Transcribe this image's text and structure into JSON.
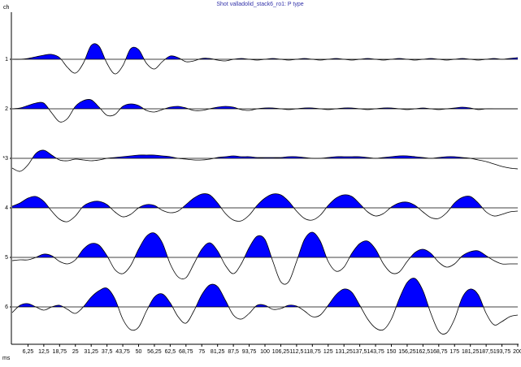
{
  "chart_data": {
    "type": "wiggle",
    "title": "Shot valladolid_stack6_ro1: P type",
    "y_axis_label": "ch",
    "x_axis_label": "ms",
    "xlim": [
      0,
      200
    ],
    "ylim": [
      -30.5,
      30.5
    ],
    "fill_color": "#0000ff",
    "line_color": "#000000",
    "xticks": [
      {
        "value": 6.25,
        "label": "6,25"
      },
      {
        "value": 12.5,
        "label": "12,5"
      },
      {
        "value": 18.75,
        "label": "18,75"
      },
      25,
      {
        "value": 31.25,
        "label": "31,25"
      },
      {
        "value": 37.5,
        "label": "37,5"
      },
      {
        "value": 43.75,
        "label": "43,75"
      },
      50,
      {
        "value": 56.25,
        "label": "56,25"
      },
      {
        "value": 62.5,
        "label": "62,5"
      },
      {
        "value": 68.75,
        "label": "68,75"
      },
      75,
      {
        "value": 81.25,
        "label": "81,25"
      },
      {
        "value": 87.5,
        "label": "87,5"
      },
      {
        "value": 93.75,
        "label": "93,75"
      },
      100,
      {
        "value": 106.25,
        "label": "106,25"
      },
      {
        "value": 112.5,
        "label": "112,5"
      },
      {
        "value": 118.75,
        "label": "118,75"
      },
      125,
      {
        "value": 131.25,
        "label": "131,25"
      },
      {
        "value": 137.5,
        "label": "137,5"
      },
      {
        "value": 143.75,
        "label": "143,75"
      },
      150,
      {
        "value": 156.25,
        "label": "156,25"
      },
      {
        "value": 162.5,
        "label": "162,5"
      },
      {
        "value": 168.75,
        "label": "168,75"
      },
      175,
      {
        "value": 181.25,
        "label": "181,25"
      },
      {
        "value": 187.5,
        "label": "187,5"
      },
      {
        "value": 193.75,
        "label": "193,75"
      },
      200
    ],
    "x": [
      0,
      3.125,
      6.25,
      9.375,
      12.5,
      15.625,
      18.75,
      21.875,
      25,
      28.125,
      31.25,
      34.375,
      37.5,
      40.625,
      43.75,
      46.875,
      50,
      53.125,
      56.25,
      59.375,
      62.5,
      65.625,
      68.75,
      71.875,
      75,
      78.125,
      81.25,
      84.375,
      87.5,
      90.625,
      93.75,
      96.875,
      100,
      103.125,
      106.25,
      109.375,
      112.5,
      115.625,
      118.75,
      121.875,
      125,
      128.125,
      131.25,
      134.375,
      137.5,
      140.625,
      143.75,
      146.875,
      150,
      153.125,
      156.25,
      159.375,
      162.5,
      165.625,
      168.75,
      171.875,
      175,
      178.125,
      181.25,
      184.375,
      187.5,
      190.625,
      193.75,
      196.875,
      200
    ],
    "series": [
      {
        "name": "1",
        "values": [
          0,
          0,
          1,
          3,
          5,
          6,
          2,
          -10,
          -17,
          -5,
          17,
          16,
          -5,
          -18,
          -8,
          13,
          12,
          -5,
          -12,
          -3,
          4,
          2,
          -3,
          -2,
          1,
          1,
          -1,
          -2,
          0,
          1,
          0,
          -1,
          0,
          1,
          0,
          -1,
          0,
          1,
          0,
          -1,
          0,
          1,
          0,
          -1,
          0,
          1,
          0,
          -1,
          0,
          1,
          0,
          -1,
          0,
          1,
          0,
          -1,
          0,
          1,
          0,
          -1,
          0,
          1,
          0,
          1,
          2
        ]
      },
      {
        "name": "2",
        "values": [
          0,
          1,
          4,
          7,
          7,
          -5,
          -16,
          -12,
          3,
          10,
          11,
          2,
          -8,
          -7,
          3,
          6,
          4,
          -2,
          -4,
          -1,
          2,
          3,
          1,
          -2,
          -2,
          0,
          2,
          3,
          2,
          -1,
          -2,
          0,
          1,
          1,
          0,
          -1,
          0,
          1,
          1,
          0,
          -1,
          0,
          1,
          1,
          0,
          -1,
          0,
          1,
          1,
          0,
          -1,
          0,
          1,
          0,
          -1,
          0,
          1,
          2,
          1,
          -1,
          0,
          0,
          0,
          0,
          0
        ]
      },
      {
        "name": "*3",
        "values": [
          -12,
          -16,
          -8,
          6,
          10,
          4,
          -2,
          -3,
          -1,
          -2,
          -3,
          -2,
          0,
          1,
          2,
          3,
          4,
          4,
          4,
          3,
          2,
          0,
          -1,
          -2,
          -2,
          -1,
          1,
          2,
          3,
          2,
          2,
          1,
          1,
          1,
          1,
          2,
          2,
          1,
          0,
          0,
          1,
          2,
          2,
          2,
          2,
          1,
          0,
          1,
          2,
          3,
          3,
          2,
          1,
          0,
          1,
          2,
          2,
          1,
          0,
          -2,
          -4,
          -7,
          -10,
          -12,
          -13
        ]
      },
      {
        "name": "4",
        "values": [
          2,
          6,
          12,
          14,
          8,
          -4,
          -14,
          -17,
          -10,
          2,
          7,
          8,
          4,
          -5,
          -11,
          -8,
          0,
          4,
          3,
          -3,
          -6,
          -4,
          4,
          12,
          17,
          16,
          6,
          -7,
          -15,
          -16,
          -9,
          3,
          12,
          17,
          16,
          8,
          -4,
          -13,
          -15,
          -9,
          3,
          12,
          16,
          14,
          5,
          -5,
          -10,
          -7,
          1,
          6,
          7,
          3,
          -5,
          -12,
          -13,
          -6,
          6,
          13,
          14,
          6,
          -5,
          -10,
          -8,
          -5,
          -4
        ]
      },
      {
        "name": "5",
        "values": [
          -4,
          -3,
          -3,
          0,
          4,
          2,
          -5,
          -8,
          -3,
          10,
          17,
          15,
          2,
          -15,
          -20,
          -10,
          10,
          26,
          30,
          18,
          -8,
          -24,
          -25,
          -8,
          10,
          18,
          8,
          -10,
          -20,
          -8,
          12,
          26,
          22,
          -5,
          -30,
          -30,
          -5,
          22,
          31,
          20,
          -5,
          -17,
          -12,
          5,
          17,
          20,
          10,
          -8,
          -19,
          -18,
          -5,
          6,
          10,
          5,
          -6,
          -12,
          -8,
          2,
          7,
          8,
          2,
          -4,
          -8,
          -8,
          -8
        ]
      },
      {
        "name": "6",
        "values": [
          -7,
          2,
          4,
          0,
          -4,
          0,
          2,
          -3,
          -8,
          0,
          12,
          20,
          23,
          10,
          -15,
          -28,
          -25,
          -5,
          12,
          16,
          5,
          -12,
          -20,
          -5,
          15,
          27,
          25,
          8,
          -10,
          -15,
          -8,
          2,
          2,
          -3,
          -2,
          2,
          1,
          -5,
          -12,
          -10,
          2,
          15,
          22,
          18,
          2,
          -15,
          -26,
          -28,
          -15,
          10,
          30,
          35,
          20,
          -8,
          -30,
          -32,
          -15,
          12,
          22,
          15,
          -8,
          -22,
          -18,
          -12,
          -10
        ]
      }
    ]
  }
}
